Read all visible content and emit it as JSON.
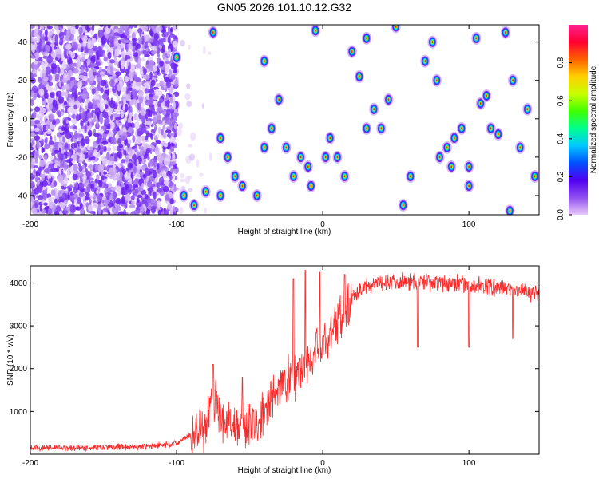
{
  "title": "GN05.2026.101.10.12.G32",
  "chart_data": [
    {
      "type": "heatmap",
      "title": "GN05.2026.101.10.12.G32",
      "xlabel": "Height of straight line (km)",
      "ylabel": "Frequency (Hz)",
      "xlim": [
        -200,
        148
      ],
      "ylim": [
        -50,
        49
      ],
      "xticks": [
        -200,
        -100,
        0,
        100
      ],
      "yticks": [
        -40,
        -20,
        0,
        20,
        40
      ],
      "colorbar": {
        "label": "Normalized spectral amplitude",
        "range": [
          0,
          1
        ],
        "ticks": [
          "0.0",
          "0.2",
          "0.4",
          "0.6",
          "0.8"
        ],
        "colors": [
          "#e8c8f8",
          "#9050f0",
          "#5000f0",
          "#0050ff",
          "#00c8ff",
          "#00ff90",
          "#40ff00",
          "#c8ff00",
          "#ffd000",
          "#ff6000",
          "#ff0030",
          "#ff2090"
        ]
      },
      "description_regions": [
        {
          "x_range": [
            -200,
            -100
          ],
          "pattern": "dense noise speckle, amplitude 0.05-0.3"
        },
        {
          "x_range": [
            -100,
            148
          ],
          "pattern": "isolated high-amplitude tone blobs"
        }
      ],
      "blobs": [
        [
          -5,
          46
        ],
        [
          -40,
          30
        ],
        [
          -75,
          45
        ],
        [
          -100,
          32
        ],
        [
          -95,
          -40
        ],
        [
          -80,
          -38
        ],
        [
          -88,
          -45
        ],
        [
          -70,
          -40
        ],
        [
          -60,
          -30
        ],
        [
          -65,
          -20
        ],
        [
          -70,
          -10
        ],
        [
          -55,
          -35
        ],
        [
          -45,
          -40
        ],
        [
          -40,
          -15
        ],
        [
          -35,
          -5
        ],
        [
          -30,
          10
        ],
        [
          -25,
          -15
        ],
        [
          -20,
          -30
        ],
        [
          -15,
          -20
        ],
        [
          -10,
          -25
        ],
        [
          -8,
          -35
        ],
        [
          2,
          -20
        ],
        [
          5,
          -10
        ],
        [
          10,
          -20
        ],
        [
          15,
          -30
        ],
        [
          20,
          35
        ],
        [
          25,
          22
        ],
        [
          30,
          42
        ],
        [
          30,
          -5
        ],
        [
          35,
          5
        ],
        [
          40,
          -5
        ],
        [
          45,
          10
        ],
        [
          50,
          48
        ],
        [
          55,
          -45
        ],
        [
          60,
          -30
        ],
        [
          70,
          30
        ],
        [
          75,
          40
        ],
        [
          78,
          20
        ],
        [
          80,
          -20
        ],
        [
          85,
          -15
        ],
        [
          90,
          -10
        ],
        [
          95,
          -5
        ],
        [
          100,
          -25
        ],
        [
          100,
          -35
        ],
        [
          105,
          42
        ],
        [
          108,
          8
        ],
        [
          112,
          12
        ],
        [
          115,
          -5
        ],
        [
          120,
          -8
        ],
        [
          125,
          45
        ],
        [
          130,
          20
        ],
        [
          135,
          -15
        ],
        [
          140,
          5
        ],
        [
          145,
          -30
        ],
        [
          128,
          -48
        ],
        [
          88,
          -25
        ]
      ]
    },
    {
      "type": "line",
      "xlabel": "Height of straight line (km)",
      "ylabel": "SNR (10 * v/v)",
      "xlim": [
        -200,
        148
      ],
      "ylim": [
        0,
        4400
      ],
      "xticks": [
        -200,
        -100,
        0,
        100
      ],
      "yticks": [
        1000,
        2000,
        3000,
        4000
      ],
      "series": [
        {
          "name": "SNR",
          "color": "#ff2a2a",
          "description": "noisy trace; low plateau ~100-200 for x<-90, rising bursts -80 to 0, high plateau ~3900-4100 for x>20",
          "anchor_points": [
            [
              -200,
              150
            ],
            [
              -160,
              150
            ],
            [
              -120,
              180
            ],
            [
              -100,
              250
            ],
            [
              -90,
              450
            ],
            [
              -80,
              700
            ],
            [
              -75,
              1400
            ],
            [
              -70,
              900
            ],
            [
              -60,
              700
            ],
            [
              -50,
              600
            ],
            [
              -40,
              900
            ],
            [
              -30,
              1600
            ],
            [
              -20,
              1800
            ],
            [
              -10,
              2200
            ],
            [
              0,
              2500
            ],
            [
              10,
              3100
            ],
            [
              20,
              3700
            ],
            [
              30,
              3950
            ],
            [
              50,
              4050
            ],
            [
              80,
              4000
            ],
            [
              100,
              3950
            ],
            [
              120,
              3900
            ],
            [
              140,
              3800
            ],
            [
              148,
              3750
            ]
          ],
          "spikes": [
            [
              -75,
              2100
            ],
            [
              -55,
              1800
            ],
            [
              -20,
              4100
            ],
            [
              -12,
              4300
            ],
            [
              -2,
              4250
            ],
            [
              15,
              4200
            ],
            [
              65,
              2500
            ],
            [
              100,
              2500
            ],
            [
              130,
              2700
            ]
          ]
        }
      ]
    }
  ]
}
